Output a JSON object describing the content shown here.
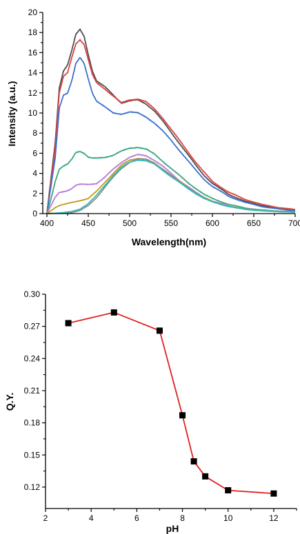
{
  "chart_data": [
    {
      "type": "line",
      "xlabel": "Wavelength(nm)",
      "ylabel": "Intensity (a.u.)",
      "xlim": [
        395,
        700
      ],
      "ylim": [
        0,
        20
      ],
      "x_ticks": [
        "400",
        "450",
        "500",
        "550",
        "600",
        "650",
        "700"
      ],
      "y_ticks": [
        "0",
        "2",
        "4",
        "6",
        "8",
        "10",
        "12",
        "14",
        "16",
        "18",
        "20"
      ],
      "legend": "none",
      "grid": false,
      "series": [
        {
          "color": "#4d4d4d",
          "points": [
            [
              400,
              0
            ],
            [
              410,
              7
            ],
            [
              415,
              12.5
            ],
            [
              420,
              14.2
            ],
            [
              425,
              14.8
            ],
            [
              430,
              16.2
            ],
            [
              435,
              17.8
            ],
            [
              440,
              18.3
            ],
            [
              445,
              17.6
            ],
            [
              450,
              15.8
            ],
            [
              455,
              14.2
            ],
            [
              460,
              13.2
            ],
            [
              470,
              12.6
            ],
            [
              480,
              11.8
            ],
            [
              490,
              11.0
            ],
            [
              500,
              11.2
            ],
            [
              510,
              11.3
            ],
            [
              520,
              10.9
            ],
            [
              530,
              10.2
            ],
            [
              540,
              9.2
            ],
            [
              550,
              8.1
            ],
            [
              560,
              7.0
            ],
            [
              570,
              5.9
            ],
            [
              580,
              4.8
            ],
            [
              590,
              3.8
            ],
            [
              600,
              3.0
            ],
            [
              620,
              1.9
            ],
            [
              640,
              1.2
            ],
            [
              660,
              0.8
            ],
            [
              680,
              0.5
            ],
            [
              700,
              0.35
            ]
          ]
        },
        {
          "color": "#e04040",
          "points": [
            [
              400,
              0
            ],
            [
              410,
              6.5
            ],
            [
              415,
              12
            ],
            [
              420,
              13.6
            ],
            [
              425,
              14
            ],
            [
              430,
              15.5
            ],
            [
              435,
              16.9
            ],
            [
              440,
              17.3
            ],
            [
              445,
              16.8
            ],
            [
              450,
              15.3
            ],
            [
              455,
              13.8
            ],
            [
              460,
              13
            ],
            [
              470,
              12.4
            ],
            [
              480,
              11.7
            ],
            [
              490,
              11.0
            ],
            [
              500,
              11.3
            ],
            [
              510,
              11.4
            ],
            [
              520,
              11.1
            ],
            [
              530,
              10.4
            ],
            [
              540,
              9.5
            ],
            [
              550,
              8.4
            ],
            [
              560,
              7.3
            ],
            [
              570,
              6.2
            ],
            [
              580,
              5.1
            ],
            [
              590,
              4.1
            ],
            [
              600,
              3.2
            ],
            [
              620,
              2.1
            ],
            [
              640,
              1.4
            ],
            [
              660,
              0.9
            ],
            [
              680,
              0.6
            ],
            [
              700,
              0.4
            ]
          ]
        },
        {
          "color": "#3b6fcc",
          "points": [
            [
              400,
              0
            ],
            [
              410,
              5.5
            ],
            [
              415,
              10.5
            ],
            [
              420,
              11.8
            ],
            [
              425,
              12
            ],
            [
              430,
              13.2
            ],
            [
              435,
              14.9
            ],
            [
              440,
              15.5
            ],
            [
              445,
              14.9
            ],
            [
              450,
              13.4
            ],
            [
              455,
              12
            ],
            [
              460,
              11.2
            ],
            [
              470,
              10.6
            ],
            [
              480,
              10.0
            ],
            [
              490,
              9.9
            ],
            [
              500,
              10.1
            ],
            [
              510,
              10.0
            ],
            [
              520,
              9.6
            ],
            [
              530,
              9.0
            ],
            [
              540,
              8.2
            ],
            [
              550,
              7.3
            ],
            [
              560,
              6.3
            ],
            [
              570,
              5.3
            ],
            [
              580,
              4.3
            ],
            [
              590,
              3.4
            ],
            [
              600,
              2.7
            ],
            [
              620,
              1.7
            ],
            [
              640,
              1.1
            ],
            [
              660,
              0.7
            ],
            [
              680,
              0.45
            ],
            [
              700,
              0.3
            ]
          ]
        },
        {
          "color": "#3aa57a",
          "points": [
            [
              400,
              0
            ],
            [
              405,
              1.5
            ],
            [
              410,
              3.2
            ],
            [
              415,
              4.4
            ],
            [
              420,
              4.7
            ],
            [
              425,
              4.9
            ],
            [
              430,
              5.4
            ],
            [
              435,
              6.1
            ],
            [
              440,
              6.2
            ],
            [
              445,
              6.0
            ],
            [
              450,
              5.6
            ],
            [
              455,
              5.5
            ],
            [
              460,
              5.5
            ],
            [
              470,
              5.6
            ],
            [
              480,
              5.8
            ],
            [
              490,
              6.2
            ],
            [
              500,
              6.5
            ],
            [
              510,
              6.6
            ],
            [
              520,
              6.4
            ],
            [
              530,
              5.9
            ],
            [
              540,
              5.2
            ],
            [
              550,
              4.5
            ],
            [
              560,
              3.8
            ],
            [
              570,
              3.1
            ],
            [
              580,
              2.5
            ],
            [
              590,
              1.9
            ],
            [
              600,
              1.5
            ],
            [
              620,
              0.9
            ],
            [
              640,
              0.55
            ],
            [
              660,
              0.35
            ],
            [
              680,
              0.25
            ],
            [
              700,
              0.2
            ]
          ]
        },
        {
          "color": "#b67ad9",
          "points": [
            [
              400,
              0
            ],
            [
              405,
              0.8
            ],
            [
              410,
              1.6
            ],
            [
              415,
              2.1
            ],
            [
              420,
              2.2
            ],
            [
              425,
              2.3
            ],
            [
              430,
              2.5
            ],
            [
              435,
              2.8
            ],
            [
              440,
              2.9
            ],
            [
              450,
              2.9
            ],
            [
              460,
              3.0
            ],
            [
              470,
              3.6
            ],
            [
              480,
              4.4
            ],
            [
              490,
              5.1
            ],
            [
              500,
              5.6
            ],
            [
              510,
              5.85
            ],
            [
              520,
              5.75
            ],
            [
              530,
              5.3
            ],
            [
              540,
              4.7
            ],
            [
              550,
              4.0
            ],
            [
              560,
              3.3
            ],
            [
              570,
              2.7
            ],
            [
              580,
              2.1
            ],
            [
              590,
              1.6
            ],
            [
              600,
              1.25
            ],
            [
              620,
              0.75
            ],
            [
              640,
              0.45
            ],
            [
              660,
              0.3
            ],
            [
              680,
              0.2
            ],
            [
              700,
              0.15
            ]
          ]
        },
        {
          "color": "#c39a1a",
          "points": [
            [
              400,
              0
            ],
            [
              405,
              0.3
            ],
            [
              410,
              0.6
            ],
            [
              415,
              0.8
            ],
            [
              420,
              0.9
            ],
            [
              425,
              1.0
            ],
            [
              430,
              1.1
            ],
            [
              440,
              1.3
            ],
            [
              450,
              1.5
            ],
            [
              460,
              2.2
            ],
            [
              470,
              3.1
            ],
            [
              480,
              4.0
            ],
            [
              490,
              4.8
            ],
            [
              500,
              5.3
            ],
            [
              510,
              5.5
            ],
            [
              520,
              5.4
            ],
            [
              530,
              5.0
            ],
            [
              540,
              4.4
            ],
            [
              550,
              3.8
            ],
            [
              560,
              3.2
            ],
            [
              570,
              2.6
            ],
            [
              580,
              2.0
            ],
            [
              590,
              1.6
            ],
            [
              600,
              1.2
            ],
            [
              620,
              0.7
            ],
            [
              640,
              0.45
            ],
            [
              660,
              0.3
            ],
            [
              680,
              0.2
            ],
            [
              700,
              0.15
            ]
          ]
        },
        {
          "color": "#8d8d8d",
          "points": [
            [
              400,
              0
            ],
            [
              410,
              0.02
            ],
            [
              420,
              0.05
            ],
            [
              430,
              0.1
            ],
            [
              440,
              0.3
            ],
            [
              450,
              0.8
            ],
            [
              460,
              1.6
            ],
            [
              470,
              2.6
            ],
            [
              480,
              3.6
            ],
            [
              490,
              4.5
            ],
            [
              500,
              5.1
            ],
            [
              510,
              5.4
            ],
            [
              520,
              5.4
            ],
            [
              530,
              5.0
            ],
            [
              540,
              4.4
            ],
            [
              550,
              3.8
            ],
            [
              560,
              3.2
            ],
            [
              570,
              2.6
            ],
            [
              580,
              2.0
            ],
            [
              590,
              1.6
            ],
            [
              600,
              1.2
            ],
            [
              620,
              0.7
            ],
            [
              640,
              0.45
            ],
            [
              660,
              0.3
            ],
            [
              680,
              0.2
            ],
            [
              700,
              0.15
            ]
          ]
        },
        {
          "color": "#2fb8b8",
          "points": [
            [
              400,
              0
            ],
            [
              410,
              0.05
            ],
            [
              420,
              0.1
            ],
            [
              430,
              0.2
            ],
            [
              440,
              0.45
            ],
            [
              450,
              1.0
            ],
            [
              460,
              1.8
            ],
            [
              470,
              2.8
            ],
            [
              480,
              3.8
            ],
            [
              490,
              4.6
            ],
            [
              500,
              5.1
            ],
            [
              510,
              5.35
            ],
            [
              520,
              5.25
            ],
            [
              530,
              4.9
            ],
            [
              540,
              4.3
            ],
            [
              550,
              3.7
            ],
            [
              560,
              3.1
            ],
            [
              570,
              2.5
            ],
            [
              580,
              2.0
            ],
            [
              590,
              1.5
            ],
            [
              600,
              1.15
            ],
            [
              620,
              0.7
            ],
            [
              640,
              0.42
            ],
            [
              660,
              0.28
            ],
            [
              680,
              0.2
            ],
            [
              700,
              0.15
            ]
          ]
        }
      ]
    },
    {
      "type": "line",
      "xlabel": "pH",
      "ylabel": "Q.Y.",
      "xlim": [
        2,
        13
      ],
      "ylim": [
        0.1,
        0.3
      ],
      "x_ticks": [
        "2",
        "4",
        "6",
        "8",
        "10",
        "12"
      ],
      "y_ticks": [
        "0.12",
        "0.15",
        "0.18",
        "0.21",
        "0.24",
        "0.27",
        "0.30"
      ],
      "legend": "none",
      "grid": false,
      "series": [
        {
          "color": "#e02020",
          "marker": "square",
          "x": [
            3,
            5,
            7,
            8,
            8.5,
            9,
            10,
            12
          ],
          "y": [
            0.273,
            0.283,
            0.266,
            0.187,
            0.144,
            0.13,
            0.117,
            0.114
          ]
        }
      ]
    }
  ]
}
